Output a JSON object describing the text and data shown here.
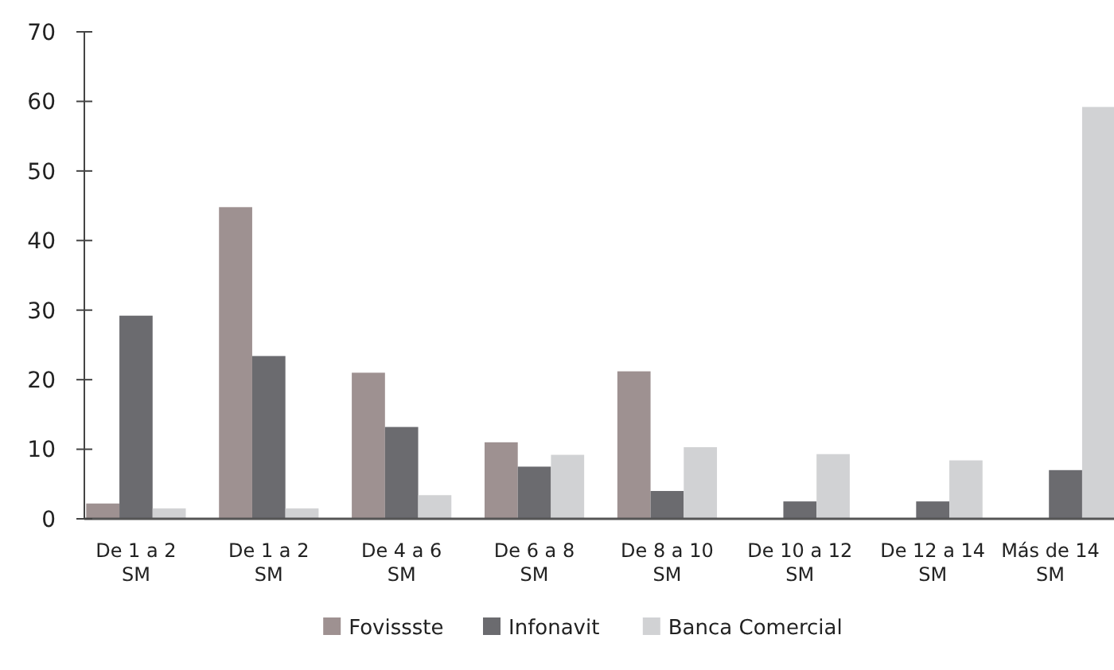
{
  "chart_data": {
    "type": "bar",
    "categories": [
      "De 1 a 2 SM",
      "De 1 a 2 SM",
      "De 4 a 6 SM",
      "De 6 a 8 SM",
      "De 8 a 10 SM",
      "De 10 a 12 SM",
      "De 12 a 14 SM",
      "Más de 14 SM"
    ],
    "series": [
      {
        "name": "Fovissste",
        "color": "#9e9191",
        "values": [
          2.2,
          44.8,
          21,
          11,
          21.2,
          0,
          0,
          0
        ]
      },
      {
        "name": "Infonavit",
        "color": "#6b6b6f",
        "values": [
          29.2,
          23.4,
          13.2,
          7.5,
          4,
          2.5,
          2.5,
          7
        ]
      },
      {
        "name": "Banca Comercial",
        "color": "#d1d2d4",
        "values": [
          1.5,
          1.5,
          3.4,
          9.2,
          10.3,
          9.3,
          8.4,
          59.2
        ]
      }
    ],
    "ylim": [
      0,
      70
    ],
    "yticks": [
      0,
      10,
      20,
      30,
      40,
      50,
      60,
      70
    ],
    "grid": false,
    "legend": "bottom"
  }
}
